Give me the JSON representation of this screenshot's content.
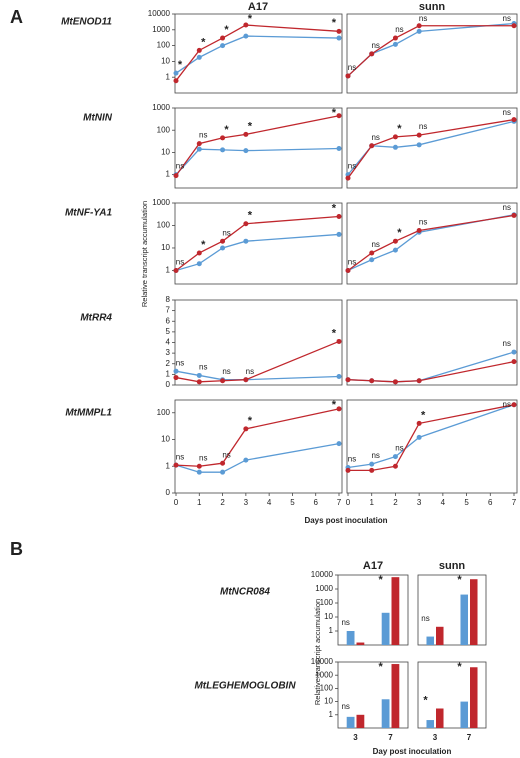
{
  "figure": {
    "panels": [
      {
        "label": "A",
        "columns": [
          "A17",
          "sunn"
        ],
        "rows": [
          "MtENOD11",
          "MtNIN",
          "MtNF-YA1",
          "MtRR4",
          "MtMMPL1"
        ],
        "xlabel": "Days post inoculation",
        "ylabel": "Relative transcript accumulation"
      },
      {
        "label": "B",
        "columns": [
          "A17",
          "sunn"
        ],
        "rows": [
          "MtNCR084",
          "MtLEGHEMOGLOBIN"
        ],
        "xlabel": "Day post inoculation",
        "ylabel": "Relative transcript accumulation"
      }
    ]
  },
  "chart_data": [
    {
      "type": "line",
      "log_y": true,
      "x": [
        0,
        1,
        2,
        3,
        7
      ],
      "xlim": [
        0,
        7
      ],
      "ylim": [
        0.1,
        10000
      ],
      "yticks": [
        1,
        10,
        100,
        1000,
        10000
      ],
      "series": [
        {
          "color": "#5b9bd5",
          "values": [
            1.8,
            18,
            100,
            400,
            300
          ]
        },
        {
          "color": "#c0272d",
          "values": [
            0.6,
            50,
            300,
            2000,
            800
          ]
        }
      ],
      "annotations": [
        "*",
        "*",
        "*",
        "*",
        "*"
      ]
    },
    {
      "type": "line",
      "log_y": true,
      "x": [
        0,
        1,
        2,
        3,
        7
      ],
      "xlim": [
        0,
        7
      ],
      "ylim": [
        0.1,
        10000
      ],
      "series": [
        {
          "color": "#5b9bd5",
          "values": [
            1.2,
            30,
            120,
            800,
            2500
          ]
        },
        {
          "color": "#c0272d",
          "values": [
            1.2,
            30,
            300,
            1800,
            1800
          ]
        }
      ],
      "annotations": [
        "ns",
        "ns",
        "ns",
        "ns",
        "ns"
      ]
    },
    {
      "type": "line",
      "log_y": true,
      "x": [
        0,
        1,
        2,
        3,
        7
      ],
      "xlim": [
        0,
        7
      ],
      "ylim": [
        0.25,
        1000
      ],
      "yticks": [
        1,
        10,
        100,
        1000
      ],
      "series": [
        {
          "color": "#5b9bd5",
          "values": [
            1,
            14,
            13,
            12,
            15
          ]
        },
        {
          "color": "#c0272d",
          "values": [
            0.9,
            25,
            45,
            65,
            450
          ]
        }
      ],
      "annotations": [
        "ns",
        "ns",
        "*",
        "*",
        "*"
      ]
    },
    {
      "type": "line",
      "log_y": true,
      "x": [
        0,
        1,
        2,
        3,
        7
      ],
      "xlim": [
        0,
        7
      ],
      "ylim": [
        0.25,
        1000
      ],
      "series": [
        {
          "color": "#5b9bd5",
          "values": [
            1,
            20,
            17,
            22,
            250
          ]
        },
        {
          "color": "#c0272d",
          "values": [
            0.7,
            20,
            50,
            60,
            300
          ]
        }
      ],
      "annotations": [
        "ns",
        "ns",
        "*",
        "ns",
        "ns"
      ]
    },
    {
      "type": "line",
      "log_y": true,
      "x": [
        0,
        1,
        2,
        3,
        7
      ],
      "xlim": [
        0,
        7
      ],
      "ylim": [
        0.25,
        1000
      ],
      "yticks": [
        1,
        10,
        100,
        1000
      ],
      "series": [
        {
          "color": "#5b9bd5",
          "values": [
            1,
            2,
            10,
            20,
            40
          ]
        },
        {
          "color": "#c0272d",
          "values": [
            1,
            6,
            20,
            120,
            250
          ]
        }
      ],
      "annotations": [
        "ns",
        "*",
        "ns",
        "*",
        "*"
      ]
    },
    {
      "type": "line",
      "log_y": true,
      "x": [
        0,
        1,
        2,
        3,
        7
      ],
      "xlim": [
        0,
        7
      ],
      "ylim": [
        0.25,
        1000
      ],
      "series": [
        {
          "color": "#5b9bd5",
          "values": [
            1,
            3,
            8,
            50,
            300
          ]
        },
        {
          "color": "#c0272d",
          "values": [
            1,
            6,
            20,
            60,
            280
          ]
        }
      ],
      "annotations": [
        "ns",
        "ns",
        "*",
        "ns",
        "ns"
      ]
    },
    {
      "type": "line",
      "log_y": false,
      "x": [
        0,
        1,
        2,
        3,
        7
      ],
      "xlim": [
        0,
        7
      ],
      "ylim": [
        0,
        8
      ],
      "yticks": [
        0,
        1,
        2,
        3,
        4,
        5,
        6,
        7,
        8
      ],
      "series": [
        {
          "color": "#5b9bd5",
          "values": [
            1.3,
            0.9,
            0.5,
            0.5,
            0.8
          ]
        },
        {
          "color": "#c0272d",
          "values": [
            0.7,
            0.3,
            0.4,
            0.5,
            4.1
          ]
        }
      ],
      "annotations": [
        "ns",
        "ns",
        "ns",
        "ns",
        "*"
      ]
    },
    {
      "type": "line",
      "log_y": false,
      "x": [
        0,
        1,
        2,
        3,
        7
      ],
      "xlim": [
        0,
        7
      ],
      "ylim": [
        0,
        8
      ],
      "series": [
        {
          "color": "#5b9bd5",
          "values": [
            0.5,
            0.4,
            0.3,
            0.4,
            3.1
          ]
        },
        {
          "color": "#c0272d",
          "values": [
            0.5,
            0.4,
            0.3,
            0.4,
            2.2
          ]
        }
      ],
      "annotations": [
        null,
        null,
        null,
        null,
        "ns"
      ]
    },
    {
      "type": "line",
      "log_y": true,
      "x": [
        0,
        1,
        2,
        3,
        7
      ],
      "xlim": [
        0,
        7
      ],
      "xticks": [
        0,
        1,
        2,
        3,
        4,
        5,
        6,
        7
      ],
      "ylim": [
        0.1,
        300
      ],
      "yticks": [
        {
          "value": 0.1,
          "label": "0"
        },
        1,
        10,
        100
      ],
      "series": [
        {
          "color": "#5b9bd5",
          "values": [
            1.1,
            0.6,
            0.6,
            1.7,
            7
          ]
        },
        {
          "color": "#c0272d",
          "values": [
            1.1,
            1,
            1.3,
            25,
            140
          ]
        }
      ],
      "annotations": [
        "ns",
        "ns",
        "ns",
        "*",
        "*"
      ]
    },
    {
      "type": "line",
      "log_y": true,
      "x": [
        0,
        1,
        2,
        3,
        7
      ],
      "xlim": [
        0,
        7
      ],
      "xticks": [
        0,
        1,
        2,
        3,
        4,
        5,
        6,
        7
      ],
      "ylim": [
        0.1,
        300
      ],
      "series": [
        {
          "color": "#5b9bd5",
          "values": [
            0.9,
            1.2,
            2.3,
            12,
            200
          ]
        },
        {
          "color": "#c0272d",
          "values": [
            0.7,
            0.7,
            1,
            40,
            200
          ]
        }
      ],
      "annotations": [
        "ns",
        "ns",
        "ns",
        "*",
        "ns"
      ]
    },
    {
      "type": "bar",
      "log_y": true,
      "ylim": [
        0.1,
        10000
      ],
      "yticks": [
        1,
        10,
        100,
        1000,
        10000
      ],
      "series": [
        {
          "color": "#5b9bd5",
          "values": [
            1,
            20
          ]
        },
        {
          "color": "#c0272d",
          "values": [
            0.15,
            7000
          ]
        }
      ],
      "annotations": [
        "ns",
        "*"
      ]
    },
    {
      "type": "bar",
      "log_y": true,
      "ylim": [
        0.1,
        10000
      ],
      "series": [
        {
          "color": "#5b9bd5",
          "values": [
            0.4,
            400
          ]
        },
        {
          "color": "#c0272d",
          "values": [
            2,
            5000
          ]
        }
      ],
      "annotations": [
        "ns",
        "*"
      ]
    },
    {
      "type": "bar",
      "log_y": true,
      "categories": [
        "3",
        "7"
      ],
      "ylim": [
        0.1,
        10000
      ],
      "yticks": [
        1,
        10,
        100,
        1000,
        10000
      ],
      "series": [
        {
          "color": "#5b9bd5",
          "values": [
            0.7,
            15
          ]
        },
        {
          "color": "#c0272d",
          "values": [
            1,
            7000
          ]
        }
      ],
      "annotations": [
        "ns",
        "*"
      ]
    },
    {
      "type": "bar",
      "log_y": true,
      "categories": [
        "3",
        "7"
      ],
      "ylim": [
        0.1,
        10000
      ],
      "series": [
        {
          "color": "#5b9bd5",
          "values": [
            0.4,
            10
          ]
        },
        {
          "color": "#c0272d",
          "values": [
            3,
            4000
          ]
        }
      ],
      "annotations": [
        "*",
        "*"
      ]
    }
  ]
}
